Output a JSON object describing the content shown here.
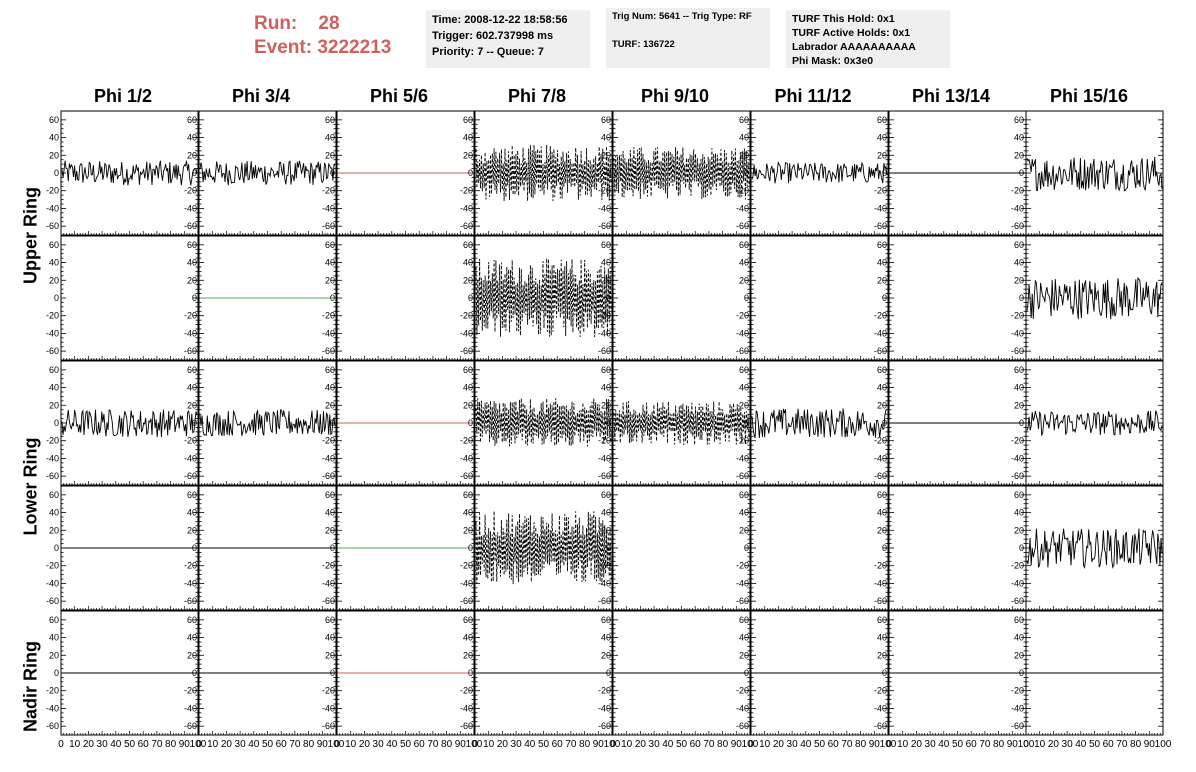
{
  "run_info": {
    "run_label": "Run:",
    "run_value": "28",
    "event_label": "Event:",
    "event_value": "3222213"
  },
  "time_box": {
    "time": "Time: 2008-12-22 18:58:56",
    "trigger": "Trigger: 602.737998 ms",
    "priority": "Priority: 7 -- Queue: 7"
  },
  "trig_box": {
    "trig": "Trig Num: 5641 -- Trig Type: RF",
    "turf": "TURF: 136722"
  },
  "turf_box": {
    "this_hold": "TURF This Hold: 0x1",
    "active_holds": "TURF Active Holds: 0x1",
    "labrador": "Labrador AAAAAAAAAA",
    "phi_mask": "Phi Mask: 0x3e0"
  },
  "columns": [
    "Phi 1/2",
    "Phi 3/4",
    "Phi 5/6",
    "Phi 7/8",
    "Phi 9/10",
    "Phi 11/12",
    "Phi 13/14",
    "Phi 15/16"
  ],
  "rings": [
    "Upper Ring",
    "Lower Ring",
    "Nadir Ring"
  ],
  "colors": {
    "red_line": "#d1605c",
    "green_line": "#5aa05a",
    "trace": "#000000",
    "info_bg": "#efefef",
    "title_red": "#d1605c"
  },
  "chart_data": {
    "type": "line",
    "ylim": [
      -70,
      70
    ],
    "xlim": [
      0,
      100
    ],
    "y_ticks": [
      60,
      40,
      20,
      0,
      -20,
      -40,
      -60
    ],
    "x_tick_labels": [
      "0",
      "10",
      "20",
      "30",
      "40",
      "50",
      "60",
      "70",
      "80",
      "90",
      "100"
    ],
    "panel_rows": [
      [
        {
          "style": "solid",
          "amp": 14
        },
        {
          "style": "solid",
          "amp": 14
        },
        {
          "style": "flat",
          "color": "red"
        },
        {
          "style": "dashed",
          "amp": 32
        },
        {
          "style": "dashed",
          "amp": 30
        },
        {
          "style": "solid",
          "amp": 12
        },
        {
          "style": "flat",
          "color": "black"
        },
        {
          "style": "solid",
          "amp": 20
        }
      ],
      [
        {
          "style": "empty"
        },
        {
          "style": "flat",
          "color": "green"
        },
        {
          "style": "empty"
        },
        {
          "style": "dashed",
          "amp": 45
        },
        {
          "style": "empty"
        },
        {
          "style": "empty"
        },
        {
          "style": "empty"
        },
        {
          "style": "solid",
          "amp": 24
        }
      ],
      [
        {
          "style": "solid",
          "amp": 16
        },
        {
          "style": "solid",
          "amp": 15
        },
        {
          "style": "flat",
          "color": "red"
        },
        {
          "style": "dashed",
          "amp": 28
        },
        {
          "style": "dashed",
          "amp": 25
        },
        {
          "style": "solid",
          "amp": 17
        },
        {
          "style": "flat",
          "color": "black"
        },
        {
          "style": "solid",
          "amp": 14
        }
      ],
      [
        {
          "style": "flat",
          "color": "black"
        },
        {
          "style": "flat",
          "color": "black"
        },
        {
          "style": "flat",
          "color": "green"
        },
        {
          "style": "dashed",
          "amp": 42
        },
        {
          "style": "empty"
        },
        {
          "style": "empty"
        },
        {
          "style": "empty"
        },
        {
          "style": "solid",
          "amp": 22
        }
      ],
      [
        {
          "style": "flat",
          "color": "black"
        },
        {
          "style": "flat",
          "color": "black"
        },
        {
          "style": "flat",
          "color": "red"
        },
        {
          "style": "flat",
          "color": "black"
        },
        {
          "style": "flat",
          "color": "black"
        },
        {
          "style": "flat",
          "color": "black"
        },
        {
          "style": "flat",
          "color": "black"
        },
        {
          "style": "flat",
          "color": "black"
        }
      ]
    ]
  }
}
